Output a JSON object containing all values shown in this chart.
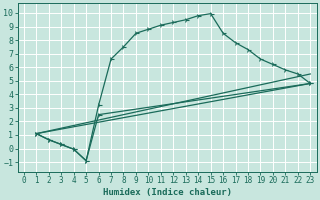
{
  "xlabel": "Humidex (Indice chaleur)",
  "bg_color": "#c8e6de",
  "grid_color": "#ffffff",
  "line_color": "#1a6b5a",
  "xlim": [
    -0.5,
    23.5
  ],
  "ylim": [
    -1.7,
    10.7
  ],
  "xticks": [
    0,
    1,
    2,
    3,
    4,
    5,
    6,
    7,
    8,
    9,
    10,
    11,
    12,
    13,
    14,
    15,
    16,
    17,
    18,
    19,
    20,
    21,
    22,
    23
  ],
  "yticks": [
    -1,
    0,
    1,
    2,
    3,
    4,
    5,
    6,
    7,
    8,
    9,
    10
  ],
  "curve1_x": [
    1,
    2,
    3,
    4,
    5,
    6,
    7,
    8,
    9,
    10,
    11,
    12,
    13,
    14,
    15,
    16,
    17,
    18,
    19,
    20,
    21,
    22,
    23
  ],
  "curve1_y": [
    1.1,
    0.65,
    0.3,
    -0.05,
    -0.9,
    3.2,
    6.6,
    7.5,
    8.5,
    8.8,
    9.1,
    9.3,
    9.5,
    9.8,
    9.95,
    8.5,
    7.8,
    7.3,
    6.6,
    6.2,
    5.8,
    5.5,
    4.8
  ],
  "curve2_x": [
    1,
    2,
    3,
    4,
    5,
    6,
    23
  ],
  "curve2_y": [
    1.1,
    0.65,
    0.3,
    -0.05,
    -0.9,
    2.5,
    4.8
  ],
  "line1_x": [
    1,
    23
  ],
  "line1_y": [
    1.1,
    5.5
  ],
  "line2_x": [
    1,
    23
  ],
  "line2_y": [
    1.1,
    4.8
  ]
}
